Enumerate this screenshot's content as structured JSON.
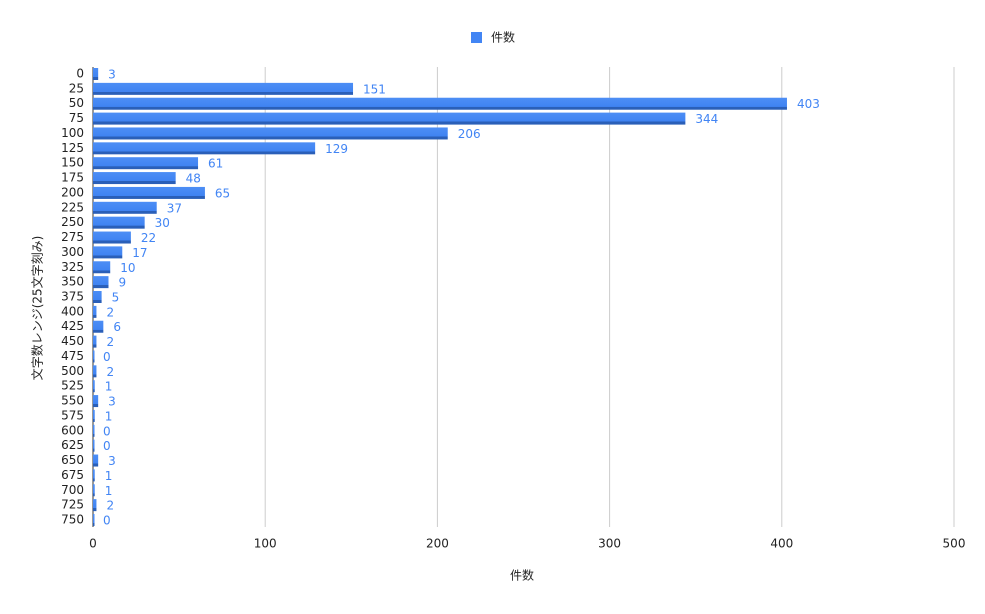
{
  "chart_data": {
    "type": "hbar",
    "legend": "件数",
    "x_label": "件数",
    "y_label": "文字数レンジ(25文字刻み)",
    "categories": [
      "0",
      "25",
      "50",
      "75",
      "100",
      "125",
      "150",
      "175",
      "200",
      "225",
      "250",
      "275",
      "300",
      "325",
      "350",
      "375",
      "400",
      "425",
      "450",
      "475",
      "500",
      "525",
      "550",
      "575",
      "600",
      "625",
      "650",
      "675",
      "700",
      "725",
      "750"
    ],
    "series": [
      {
        "name": "件数",
        "color": "#4285f4",
        "values": [
          3,
          151,
          403,
          344,
          206,
          129,
          61,
          48,
          65,
          37,
          30,
          22,
          17,
          10,
          9,
          5,
          2,
          6,
          2,
          0,
          2,
          1,
          3,
          1,
          0,
          0,
          3,
          1,
          1,
          2,
          0
        ]
      }
    ],
    "xlim": [
      0,
      500
    ],
    "xticks": [
      0,
      100,
      200,
      300,
      400,
      500
    ],
    "grid": true,
    "legend_position": "top"
  }
}
